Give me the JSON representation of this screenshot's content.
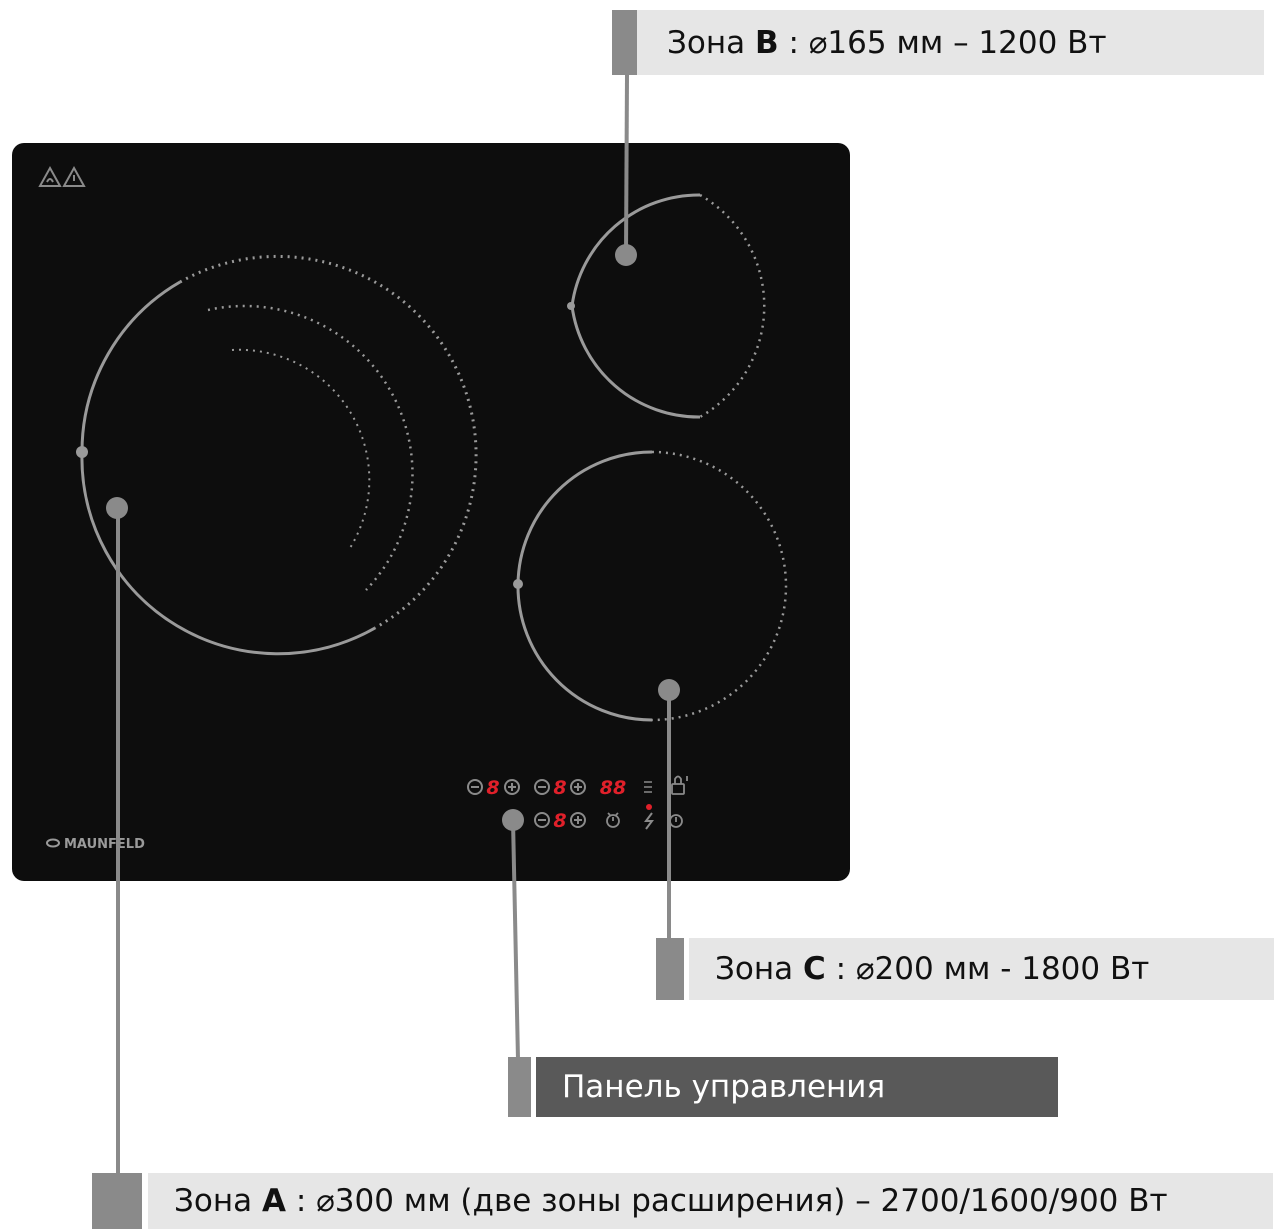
{
  "brand": "MAUNFELD",
  "display_digit": "8",
  "timer_digits": "88",
  "zones": {
    "b": {
      "prefix": "Зона ",
      "letter": "B",
      "spec": " : ⌀165 мм – 1200 Вт"
    },
    "c": {
      "prefix": "Зона ",
      "letter": "C",
      "spec": " : ⌀200 мм - 1800 Вт"
    },
    "a": {
      "prefix": "Зона ",
      "letter": "A",
      "spec": " : ⌀300 мм (две зоны расширения) – 2700/1600/900 Вт"
    }
  },
  "control_panel_label": "Панель управления",
  "colors": {
    "glass": "#0d0d0d",
    "ring": "#9a9a9a",
    "leader": "#8a8a8a",
    "label_bg": "#e6e6e6",
    "label_dark_bg": "#595959",
    "display_red": "#e0202a"
  },
  "icons": [
    "hot-surface-warning-icon",
    "warning-triangle-icon",
    "minus-icon",
    "plus-icon",
    "timer-icon",
    "child-lock-icon",
    "boost-icon",
    "power-icon"
  ]
}
